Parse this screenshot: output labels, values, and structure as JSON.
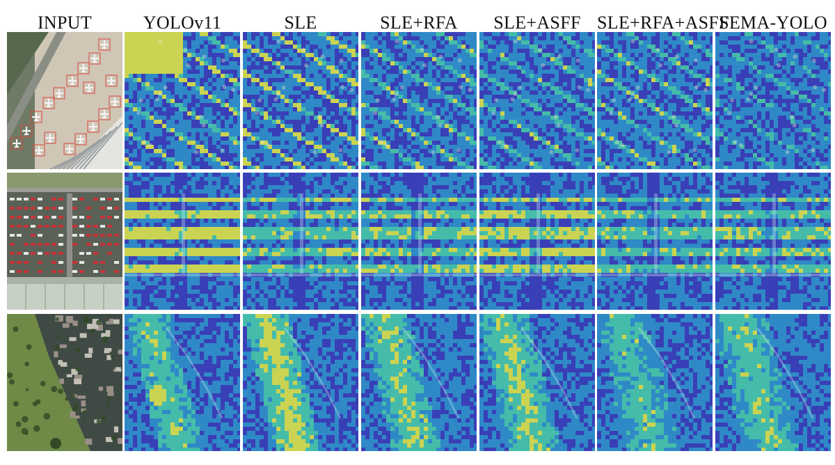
{
  "columns": [
    {
      "key": "input",
      "label": "INPUT"
    },
    {
      "key": "yolov11",
      "label": "YOLOv11"
    },
    {
      "key": "sle",
      "label": "SLE"
    },
    {
      "key": "sle_rfa",
      "label": "SLE+RFA"
    },
    {
      "key": "sle_asff",
      "label": "SLE+ASFF"
    },
    {
      "key": "sle_rfa_asff",
      "label": "SLE+RFA+ASFF"
    },
    {
      "key": "sema_yolo",
      "label": "SEMA-YOLO"
    }
  ],
  "rows": [
    {
      "key": "airport",
      "scene": "aerial view of airport apron with parked aircraft, red detection boxes"
    },
    {
      "key": "parking",
      "scene": "aerial view of a parking lot with many red cars"
    },
    {
      "key": "residential",
      "scene": "aerial view of residential buildings and green field"
    }
  ],
  "colors": {
    "heat_low": "#3a3fb6",
    "heat_mid_low": "#2f8fc9",
    "heat_mid": "#46c7a8",
    "heat_mid_high": "#d8e04a",
    "heat_high": "#e8532a",
    "detection_box": "#d9463b"
  },
  "heat_intensity": {
    "airport": [
      0,
      0.55,
      0.62,
      0.45,
      0.4,
      0.42,
      0.25
    ],
    "parking": [
      0,
      0.58,
      0.38,
      0.4,
      0.5,
      0.35,
      0.38
    ],
    "residential": [
      0,
      0.45,
      0.68,
      0.55,
      0.58,
      0.42,
      0.48
    ]
  }
}
